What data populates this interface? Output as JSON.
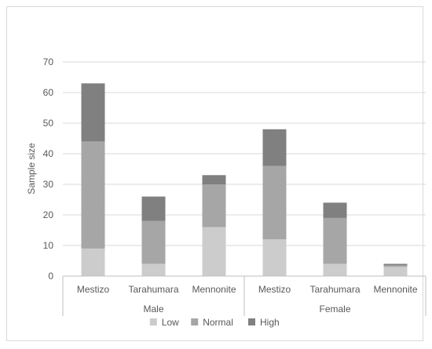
{
  "chart_data": {
    "type": "bar",
    "stacked": true,
    "title": "",
    "ylabel": "Sample size",
    "xlabel": "",
    "ylim": [
      0,
      70
    ],
    "yticks": [
      0,
      10,
      20,
      30,
      40,
      50,
      60,
      70
    ],
    "gridlines": true,
    "legend_position": "bottom",
    "groups": [
      {
        "label": "Male",
        "categories": [
          "Mestizo",
          "Tarahumara",
          "Mennonite"
        ]
      },
      {
        "label": "Female",
        "categories": [
          "Mestizo",
          "Tarahumara",
          "Mennonite"
        ]
      }
    ],
    "series": [
      {
        "name": "Low",
        "color": "#cccccc",
        "values": [
          9,
          4,
          16,
          12,
          4,
          3
        ]
      },
      {
        "name": "Normal",
        "color": "#a6a6a6",
        "values": [
          35,
          14,
          14,
          24,
          15,
          0.5
        ]
      },
      {
        "name": "High",
        "color": "#808080",
        "values": [
          19,
          8,
          3,
          12,
          5,
          0.5
        ]
      }
    ]
  }
}
